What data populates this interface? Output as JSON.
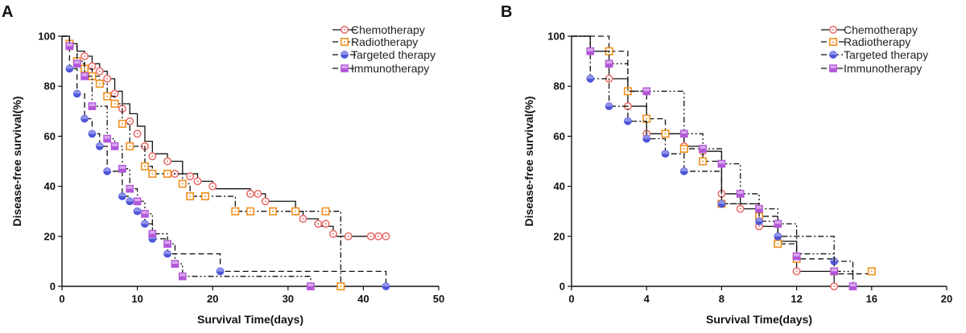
{
  "chart_data": [
    {
      "panel_label": "A",
      "type": "line",
      "subtype": "kaplan-meier step curve",
      "xlabel": "Survival Time(days)",
      "ylabel": "Disease-free survival(%)",
      "xlim": [
        0,
        50
      ],
      "ylim": [
        0,
        100
      ],
      "xticks": [
        0,
        10,
        20,
        30,
        40,
        50
      ],
      "yticks": [
        0,
        20,
        40,
        60,
        80,
        100
      ],
      "xtick_labels": [
        "0",
        "10",
        "20",
        "30",
        "40",
        "50"
      ],
      "ytick_labels": [
        "0",
        "20",
        "40",
        "60",
        "80",
        "100"
      ],
      "legend_position": "top-right",
      "series": [
        {
          "name": "Chemotherapy",
          "color": "#e8706e",
          "marker": "circle-dot",
          "dash": "solid",
          "steps": [
            [
              0,
              100
            ],
            [
              1,
              97
            ],
            [
              2,
              94
            ],
            [
              3,
              92
            ],
            [
              4,
              89
            ],
            [
              5,
              86
            ],
            [
              6,
              83
            ],
            [
              7,
              78
            ],
            [
              8,
              73
            ],
            [
              9,
              69
            ],
            [
              10,
              64
            ],
            [
              11,
              58
            ],
            [
              12,
              53
            ],
            [
              14,
              50
            ],
            [
              16,
              45
            ],
            [
              18,
              42
            ],
            [
              20,
              39
            ],
            [
              25,
              37
            ],
            [
              27,
              34
            ],
            [
              31,
              30
            ],
            [
              32,
              27
            ],
            [
              34,
              24
            ],
            [
              36,
              20
            ],
            [
              43,
              20
            ]
          ],
          "censored": [
            [
              3,
              92
            ],
            [
              4,
              88
            ],
            [
              5,
              86
            ],
            [
              6,
              83
            ],
            [
              7,
              77
            ],
            [
              8,
              71
            ],
            [
              9,
              66
            ],
            [
              10,
              61
            ],
            [
              11,
              56
            ],
            [
              12,
              52
            ],
            [
              14,
              50
            ],
            [
              15,
              45
            ],
            [
              17,
              44
            ],
            [
              18,
              42
            ],
            [
              20,
              40
            ],
            [
              25,
              37
            ],
            [
              26,
              37
            ],
            [
              27,
              34
            ],
            [
              31,
              30
            ],
            [
              32,
              27
            ],
            [
              34,
              25
            ],
            [
              35,
              25
            ],
            [
              36,
              21
            ],
            [
              38,
              20
            ],
            [
              41,
              20
            ],
            [
              42,
              20
            ],
            [
              43,
              20
            ]
          ]
        },
        {
          "name": "Radiotherapy",
          "color": "#f0901e",
          "marker": "square-dot",
          "dash": "dash-dot",
          "steps": [
            [
              0,
              100
            ],
            [
              1,
              96
            ],
            [
              2,
              90
            ],
            [
              3,
              87
            ],
            [
              4,
              84
            ],
            [
              5,
              81
            ],
            [
              6,
              76
            ],
            [
              7,
              73
            ],
            [
              8,
              65
            ],
            [
              9,
              56
            ],
            [
              11,
              48
            ],
            [
              12,
              45
            ],
            [
              16,
              41
            ],
            [
              17,
              36
            ],
            [
              23,
              30
            ],
            [
              35,
              30
            ],
            [
              37,
              0
            ]
          ],
          "censored": [
            [
              1,
              97
            ],
            [
              2,
              90
            ],
            [
              3,
              87
            ],
            [
              4,
              84
            ],
            [
              5,
              81
            ],
            [
              6,
              76
            ],
            [
              7,
              73
            ],
            [
              8,
              65
            ],
            [
              9,
              56
            ],
            [
              11,
              48
            ],
            [
              12,
              45
            ],
            [
              14,
              45
            ],
            [
              16,
              41
            ],
            [
              17,
              36
            ],
            [
              19,
              36
            ],
            [
              23,
              30
            ],
            [
              25,
              30
            ],
            [
              28,
              30
            ],
            [
              31,
              30
            ],
            [
              35,
              30
            ],
            [
              37,
              0
            ]
          ]
        },
        {
          "name": "Targeted therapy",
          "color": "#4f55d8",
          "marker": "half-circle",
          "dash": "dashed",
          "steps": [
            [
              0,
              100
            ],
            [
              1,
              87
            ],
            [
              2,
              77
            ],
            [
              3,
              67
            ],
            [
              4,
              61
            ],
            [
              5,
              56
            ],
            [
              6,
              46
            ],
            [
              8,
              36
            ],
            [
              9,
              34
            ],
            [
              10,
              30
            ],
            [
              11,
              25
            ],
            [
              12,
              19
            ],
            [
              14,
              13
            ],
            [
              17,
              13
            ],
            [
              21,
              6
            ],
            [
              43,
              0
            ]
          ],
          "censored": [
            [
              1,
              87
            ],
            [
              2,
              77
            ],
            [
              3,
              67
            ],
            [
              4,
              61
            ],
            [
              5,
              56
            ],
            [
              6,
              46
            ],
            [
              8,
              36
            ],
            [
              9,
              34
            ],
            [
              10,
              30
            ],
            [
              11,
              25
            ],
            [
              12,
              19
            ],
            [
              14,
              13
            ],
            [
              21,
              6
            ],
            [
              43,
              0
            ]
          ]
        },
        {
          "name": "Immunotherapy",
          "color": "#b257d8",
          "marker": "half-square",
          "dash": "dash-dot-dot",
          "steps": [
            [
              0,
              100
            ],
            [
              1,
              96
            ],
            [
              2,
              89
            ],
            [
              3,
              84
            ],
            [
              4,
              72
            ],
            [
              6,
              59
            ],
            [
              7,
              56
            ],
            [
              8,
              47
            ],
            [
              9,
              39
            ],
            [
              10,
              34
            ],
            [
              11,
              29
            ],
            [
              12,
              21
            ],
            [
              14,
              17
            ],
            [
              15,
              9
            ],
            [
              16,
              4
            ],
            [
              33,
              0
            ]
          ],
          "censored": [
            [
              1,
              96
            ],
            [
              2,
              89
            ],
            [
              3,
              84
            ],
            [
              4,
              72
            ],
            [
              6,
              59
            ],
            [
              7,
              56
            ],
            [
              8,
              47
            ],
            [
              9,
              39
            ],
            [
              10,
              34
            ],
            [
              11,
              29
            ],
            [
              12,
              21
            ],
            [
              14,
              17
            ],
            [
              15,
              9
            ],
            [
              16,
              4
            ],
            [
              33,
              0
            ]
          ]
        }
      ]
    },
    {
      "panel_label": "B",
      "type": "line",
      "subtype": "kaplan-meier step curve",
      "xlabel": "Survival Time(days)",
      "ylabel": "Disease-free survival(%)",
      "xlim": [
        0,
        20
      ],
      "ylim": [
        0,
        100
      ],
      "xticks": [
        0,
        4,
        8,
        12,
        16,
        20
      ],
      "yticks": [
        0,
        20,
        40,
        60,
        80,
        100
      ],
      "xtick_labels": [
        "0",
        "4",
        "8",
        "12",
        "16",
        "20"
      ],
      "ytick_labels": [
        "0",
        "20",
        "40",
        "60",
        "80",
        "100"
      ],
      "legend_position": "top-right",
      "series": [
        {
          "name": "Chemotherapy",
          "color": "#e8706e",
          "marker": "circle-dot",
          "dash": "solid",
          "steps": [
            [
              0,
              100
            ],
            [
              1,
              94
            ],
            [
              2,
              83
            ],
            [
              3,
              72
            ],
            [
              4,
              61
            ],
            [
              6,
              56
            ],
            [
              7,
              54
            ],
            [
              8,
              37
            ],
            [
              9,
              31
            ],
            [
              10,
              24
            ],
            [
              11,
              18
            ],
            [
              12,
              6
            ],
            [
              14,
              0
            ]
          ],
          "censored": [
            [
              1,
              94
            ],
            [
              2,
              83
            ],
            [
              3,
              72
            ],
            [
              4,
              61
            ],
            [
              6,
              56
            ],
            [
              7,
              54
            ],
            [
              8,
              37
            ],
            [
              9,
              31
            ],
            [
              10,
              24
            ],
            [
              11,
              18
            ],
            [
              12,
              6
            ],
            [
              14,
              0
            ]
          ]
        },
        {
          "name": "Radiotherapy",
          "color": "#f0901e",
          "marker": "square-dot",
          "dash": "dashed",
          "steps": [
            [
              0,
              100
            ],
            [
              2,
              94
            ],
            [
              3,
              78
            ],
            [
              4,
              67
            ],
            [
              5,
              61
            ],
            [
              6,
              55
            ],
            [
              7,
              50
            ],
            [
              8,
              33
            ],
            [
              10,
              28
            ],
            [
              11,
              17
            ],
            [
              12,
              11
            ],
            [
              14,
              5
            ],
            [
              16,
              5
            ]
          ],
          "censored": [
            [
              2,
              94
            ],
            [
              3,
              78
            ],
            [
              4,
              67
            ],
            [
              5,
              61
            ],
            [
              6,
              55
            ],
            [
              7,
              50
            ],
            [
              8,
              33
            ],
            [
              10,
              28
            ],
            [
              11,
              17
            ],
            [
              12,
              11
            ],
            [
              14,
              6
            ],
            [
              16,
              6
            ]
          ]
        },
        {
          "name": "Targeted therapy",
          "color": "#4f55d8",
          "marker": "half-circle",
          "dash": "dash-dot",
          "steps": [
            [
              0,
              100
            ],
            [
              1,
              83
            ],
            [
              2,
              72
            ],
            [
              3,
              66
            ],
            [
              4,
              59
            ],
            [
              5,
              53
            ],
            [
              6,
              46
            ],
            [
              8,
              33
            ],
            [
              10,
              26
            ],
            [
              11,
              20
            ],
            [
              14,
              10
            ],
            [
              15,
              0
            ]
          ],
          "censored": [
            [
              1,
              83
            ],
            [
              2,
              72
            ],
            [
              3,
              66
            ],
            [
              4,
              59
            ],
            [
              5,
              53
            ],
            [
              6,
              46
            ],
            [
              8,
              33
            ],
            [
              10,
              26
            ],
            [
              11,
              20
            ],
            [
              14,
              10
            ],
            [
              15,
              0
            ]
          ]
        },
        {
          "name": "Immunotherapy",
          "color": "#b257d8",
          "marker": "half-square",
          "dash": "dash-dot-dot",
          "steps": [
            [
              0,
              100
            ],
            [
              1,
              94
            ],
            [
              2,
              89
            ],
            [
              3,
              78
            ],
            [
              4,
              78
            ],
            [
              6,
              61
            ],
            [
              7,
              55
            ],
            [
              8,
              49
            ],
            [
              9,
              37
            ],
            [
              10,
              31
            ],
            [
              11,
              25
            ],
            [
              12,
              13
            ],
            [
              14,
              6
            ],
            [
              15,
              0
            ]
          ],
          "censored": [
            [
              1,
              94
            ],
            [
              2,
              89
            ],
            [
              4,
              78
            ],
            [
              6,
              61
            ],
            [
              7,
              55
            ],
            [
              8,
              49
            ],
            [
              9,
              37
            ],
            [
              10,
              31
            ],
            [
              11,
              25
            ],
            [
              12,
              12
            ],
            [
              14,
              6
            ],
            [
              15,
              0
            ]
          ]
        }
      ]
    }
  ]
}
